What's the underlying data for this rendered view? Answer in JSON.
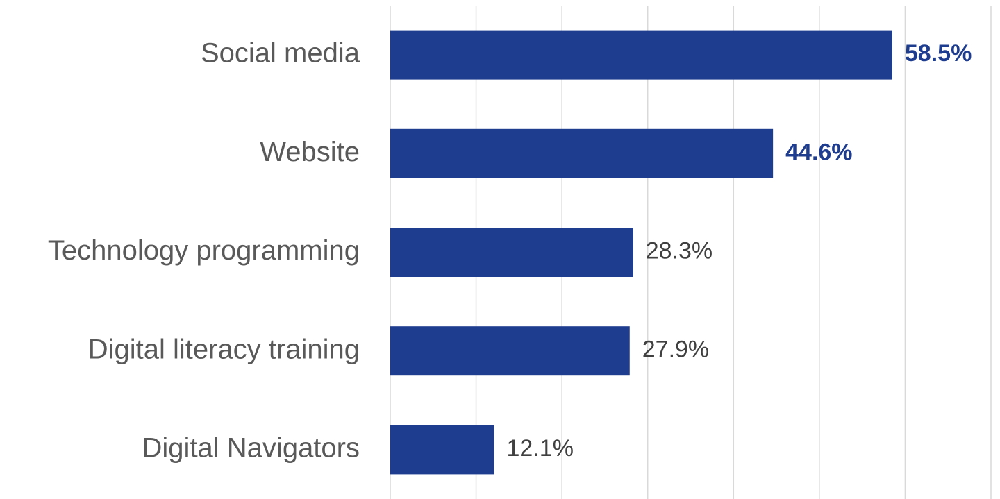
{
  "chart_data": {
    "type": "bar",
    "orientation": "horizontal",
    "categories": [
      "Social media",
      "Website",
      "Technology programming",
      "Digital literacy training",
      "Digital Navigators"
    ],
    "values": [
      58.5,
      44.6,
      28.3,
      27.9,
      12.1
    ],
    "value_labels": [
      "58.5%",
      "44.6%",
      "28.3%",
      "27.9%",
      "12.1%"
    ],
    "value_label_colors": [
      "#1f3d8f",
      "#1f3d8f",
      "#404040",
      "#404040",
      "#404040"
    ],
    "value_label_weights": [
      "bold",
      "bold",
      "normal",
      "normal",
      "normal"
    ],
    "color": "#1f3d8f",
    "xlim": [
      0,
      70
    ],
    "xticks": [
      0,
      10,
      20,
      30,
      40,
      50,
      60,
      70
    ],
    "grid": true
  }
}
